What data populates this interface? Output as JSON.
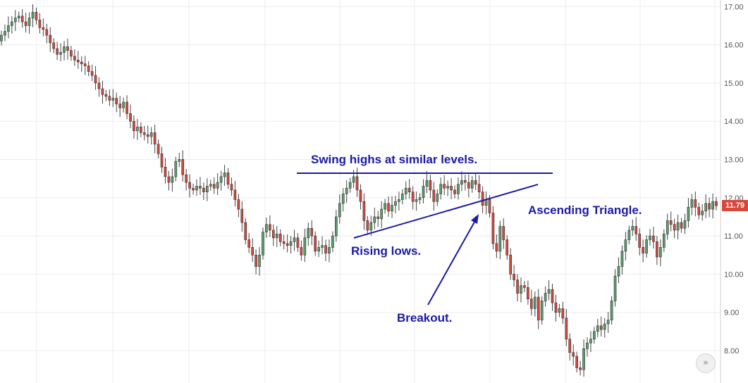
{
  "chart_data": {
    "type": "candlestick",
    "title": "",
    "xlabel": "",
    "ylabel": "",
    "ylim": [
      7.3,
      17.1
    ],
    "y_ticks": [
      "8.00",
      "9.00",
      "10.00",
      "11.00",
      "12.00",
      "13.00",
      "14.00",
      "15.00",
      "16.00",
      "17.00"
    ],
    "grid": true,
    "up_color": "#5b9e6e",
    "down_color": "#d8483b",
    "line_color": "#1a1aa6",
    "last_price": "11.79",
    "close": [
      16.25,
      16.35,
      16.5,
      16.6,
      16.7,
      16.75,
      16.6,
      16.5,
      16.7,
      16.85,
      16.65,
      16.45,
      16.4,
      16.25,
      16.05,
      15.9,
      15.75,
      15.8,
      15.95,
      15.85,
      15.7,
      15.6,
      15.55,
      15.5,
      15.45,
      15.3,
      15.2,
      15.0,
      14.85,
      14.7,
      14.65,
      14.55,
      14.6,
      14.45,
      14.35,
      14.5,
      14.2,
      14.0,
      13.75,
      13.85,
      13.7,
      13.65,
      13.6,
      13.7,
      13.4,
      13.15,
      12.8,
      12.55,
      12.4,
      12.55,
      12.95,
      13.0,
      12.6,
      12.4,
      12.25,
      12.2,
      12.3,
      12.25,
      12.15,
      12.3,
      12.35,
      12.25,
      12.4,
      12.55,
      12.65,
      12.35,
      12.2,
      11.95,
      11.7,
      11.35,
      10.9,
      10.7,
      10.5,
      10.2,
      10.5,
      11.1,
      11.3,
      11.15,
      10.95,
      11.05,
      10.85,
      10.8,
      10.75,
      10.85,
      10.95,
      10.7,
      10.5,
      10.95,
      11.2,
      11.0,
      10.6,
      10.7,
      10.75,
      10.55,
      10.7,
      11.0,
      11.5,
      11.85,
      12.1,
      12.25,
      12.4,
      12.55,
      12.2,
      11.9,
      11.4,
      11.15,
      11.35,
      11.5,
      11.45,
      11.7,
      11.85,
      11.65,
      11.8,
      11.9,
      11.95,
      12.1,
      12.25,
      12.15,
      11.9,
      11.95,
      12.0,
      12.3,
      12.45,
      12.2,
      11.9,
      12.1,
      12.35,
      12.25,
      12.3,
      12.2,
      12.1,
      12.35,
      12.45,
      12.4,
      12.25,
      12.45,
      12.35,
      12.15,
      11.8,
      11.95,
      11.6,
      10.8,
      10.6,
      11.25,
      10.9,
      10.5,
      10.0,
      9.85,
      9.5,
      9.7,
      9.65,
      9.35,
      9.1,
      9.4,
      8.8,
      9.3,
      9.5,
      9.6,
      9.25,
      9.0,
      9.1,
      8.85,
      8.3,
      7.95,
      7.85,
      7.55,
      7.5,
      8.05,
      8.2,
      8.3,
      8.5,
      8.65,
      8.55,
      8.7,
      8.8,
      9.3,
      9.95,
      10.2,
      10.6,
      10.9,
      11.15,
      11.25,
      11.05,
      10.7,
      10.55,
      10.9,
      11.0,
      10.85,
      10.45,
      10.7,
      11.05,
      11.4,
      11.3,
      11.15,
      11.35,
      11.2,
      11.4,
      11.75,
      11.95,
      11.75,
      11.55,
      11.65,
      11.85,
      11.7,
      11.9,
      11.79
    ]
  },
  "annotations": {
    "swing_highs": "Swing highs at similar levels.",
    "rising_lows": "Rising lows.",
    "breakout": "Breakout.",
    "ascending_triangle": "Ascending Triangle."
  },
  "nav_button_glyph": "»"
}
